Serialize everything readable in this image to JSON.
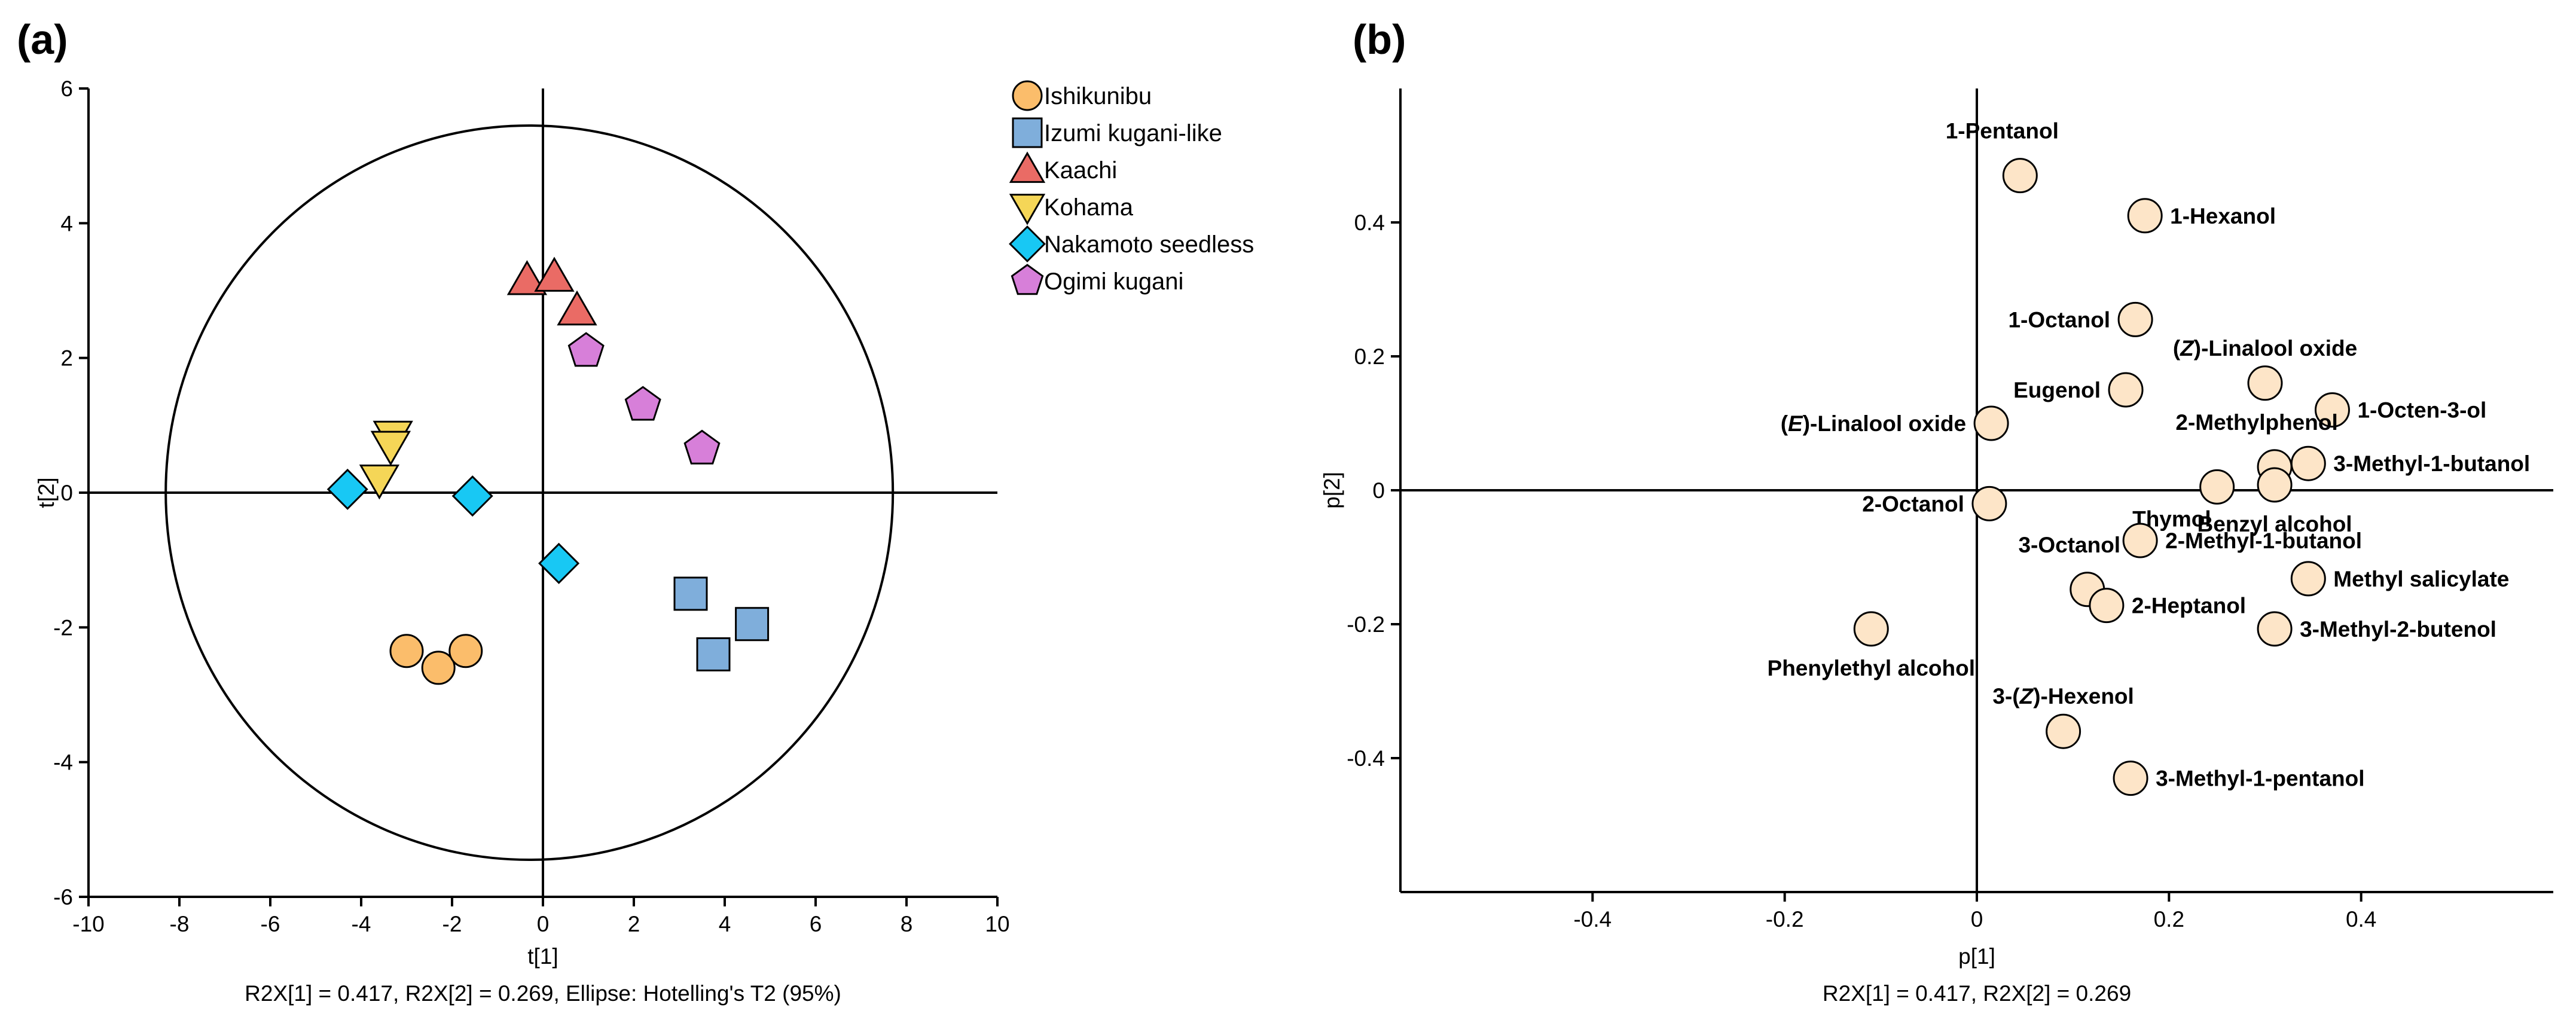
{
  "colors": {
    "ishikunibu": "#fbbd6b",
    "izumi": "#7faedb",
    "kaachi": "#ea6b65",
    "kohama": "#f5d657",
    "nakamoto": "#18c8f4",
    "ogimi": "#d77fd9",
    "loading": "#fde5c8"
  },
  "chart_data": [
    {
      "type": "scatter",
      "panel": "(a)",
      "title": "",
      "xlabel": "t[1]",
      "ylabel": "t[2]",
      "xlim": [
        -10,
        10
      ],
      "ylim": [
        -6,
        6
      ],
      "xticks": [
        "-10",
        "-8",
        "-6",
        "-4",
        "-2",
        "0",
        "2",
        "4",
        "6",
        "8",
        "10"
      ],
      "yticks": [
        "-6",
        "-4",
        "-2",
        "0",
        "2",
        "4",
        "6"
      ],
      "caption": "R2X[1] = 0.417, R2X[2] = 0.269, Ellipse: Hotelling's T2 (95%)",
      "ellipse": {
        "cx": -0.3,
        "cy": 0.0,
        "rx": 8.0,
        "ry": 5.45
      },
      "legend_position": "top-right, outside plot",
      "series": [
        {
          "name": "Ishikunibu",
          "marker": "circle",
          "color": "#fbbd6b",
          "points": [
            [
              -3.0,
              -2.35
            ],
            [
              -2.3,
              -2.6
            ],
            [
              -1.7,
              -2.35
            ]
          ]
        },
        {
          "name": "Izumi kugani-like",
          "marker": "square",
          "color": "#7faedb",
          "points": [
            [
              3.25,
              -1.5
            ],
            [
              3.75,
              -2.4
            ],
            [
              4.6,
              -1.95
            ]
          ]
        },
        {
          "name": "Kaachi",
          "marker": "triangle-up",
          "color": "#ea6b65",
          "points": [
            [
              -0.35,
              3.15
            ],
            [
              0.25,
              3.2
            ],
            [
              0.75,
              2.7
            ]
          ]
        },
        {
          "name": "Kohama",
          "marker": "triangle-down",
          "color": "#f5d657",
          "points": [
            [
              -3.3,
              0.85
            ],
            [
              -3.35,
              0.7
            ],
            [
              -3.6,
              0.2
            ]
          ]
        },
        {
          "name": "Nakamoto seedless",
          "marker": "diamond",
          "color": "#18c8f4",
          "points": [
            [
              -4.3,
              0.05
            ],
            [
              -1.55,
              -0.05
            ],
            [
              0.35,
              -1.05
            ]
          ]
        },
        {
          "name": "Ogimi kugani",
          "marker": "pentagon",
          "color": "#d77fd9",
          "points": [
            [
              0.95,
              2.1
            ],
            [
              2.2,
              1.3
            ],
            [
              3.5,
              0.65
            ]
          ]
        }
      ]
    },
    {
      "type": "scatter",
      "panel": "(b)",
      "title": "",
      "xlabel": "p[1]",
      "ylabel": "p[2]",
      "xlim": [
        -0.6,
        0.6
      ],
      "ylim": [
        -0.6,
        0.6
      ],
      "xticks": [
        "-0.4",
        "-0.2",
        "0",
        "0.2",
        "0.4"
      ],
      "yticks": [
        "-0.4",
        "-0.2",
        "0",
        "0.2",
        "0.4"
      ],
      "caption": "R2X[1] = 0.417, R2X[2] = 0.269",
      "color": "#fde5c8",
      "points": [
        {
          "x": 0.045,
          "y": 0.47,
          "pre": "",
          "em": "",
          "post": "1-Pentanol",
          "pos": "above-left"
        },
        {
          "x": 0.175,
          "y": 0.41,
          "pre": "",
          "em": "",
          "post": "1-Hexanol",
          "pos": "right"
        },
        {
          "x": 0.165,
          "y": 0.255,
          "pre": "",
          "em": "",
          "post": "1-Octanol",
          "pos": "left"
        },
        {
          "x": 0.3,
          "y": 0.16,
          "pre": "(",
          "em": "Z",
          "post": ")-Linalool oxide",
          "pos": "above"
        },
        {
          "x": 0.155,
          "y": 0.15,
          "pre": "",
          "em": "",
          "post": "Eugenol",
          "pos": "left"
        },
        {
          "x": 0.37,
          "y": 0.12,
          "pre": "",
          "em": "",
          "post": "1-Octen-3-ol",
          "pos": "right"
        },
        {
          "x": 0.015,
          "y": 0.1,
          "pre": "(",
          "em": "E",
          "post": ")-Linalool oxide",
          "pos": "left"
        },
        {
          "x": 0.31,
          "y": 0.035,
          "pre": "",
          "em": "",
          "post": "2-Methylphenol",
          "pos": "above-left"
        },
        {
          "x": 0.345,
          "y": 0.04,
          "pre": "",
          "em": "",
          "post": "3-Methyl-1-butanol",
          "pos": "right"
        },
        {
          "x": 0.25,
          "y": 0.005,
          "pre": "",
          "em": "",
          "post": "Thymol",
          "pos": "below-left"
        },
        {
          "x": 0.31,
          "y": 0.008,
          "pre": "",
          "em": "",
          "post": "Benzyl alcohol",
          "pos": "below"
        },
        {
          "x": 0.013,
          "y": -0.02,
          "pre": "",
          "em": "",
          "post": "2-Octanol",
          "pos": "left"
        },
        {
          "x": 0.17,
          "y": -0.075,
          "pre": "",
          "em": "",
          "post": "2-Methyl-1-butanol",
          "pos": "right"
        },
        {
          "x": 0.115,
          "y": -0.148,
          "pre": "",
          "em": "",
          "post": "3-Octanol",
          "pos": "above-left"
        },
        {
          "x": 0.135,
          "y": -0.172,
          "pre": "",
          "em": "",
          "post": "2-Heptanol",
          "pos": "right"
        },
        {
          "x": 0.345,
          "y": -0.132,
          "pre": "",
          "em": "",
          "post": "Methyl salicylate",
          "pos": "right"
        },
        {
          "x": 0.31,
          "y": -0.207,
          "pre": "",
          "em": "",
          "post": "3-Methyl-2-butenol",
          "pos": "right"
        },
        {
          "x": -0.11,
          "y": -0.207,
          "pre": "",
          "em": "",
          "post": "Phenylethyl alcohol",
          "pos": "below"
        },
        {
          "x": 0.09,
          "y": -0.36,
          "pre": "3-(",
          "em": "Z",
          "post": ")-Hexenol",
          "pos": "above"
        },
        {
          "x": 0.16,
          "y": -0.43,
          "pre": "",
          "em": "",
          "post": "3-Methyl-1-pentanol",
          "pos": "right"
        }
      ]
    }
  ]
}
